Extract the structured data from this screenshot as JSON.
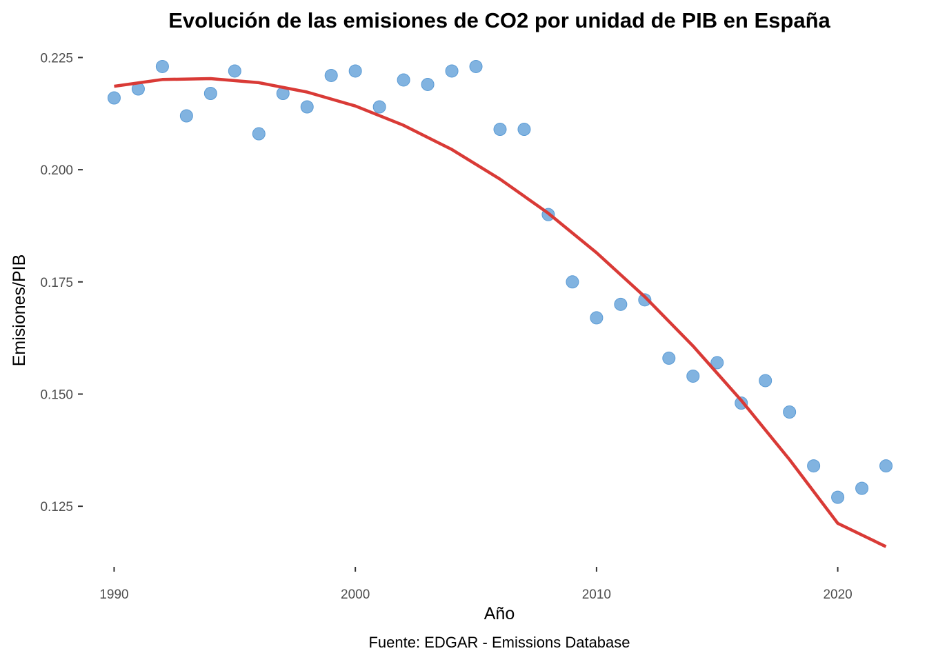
{
  "chart_data": {
    "type": "scatter",
    "title": "Evolución de las emisiones de CO2 por unidad de PIB en España",
    "xlabel": "Año",
    "ylabel": "Emisiones/PIB",
    "caption": "Fuente: EDGAR - Emissions Database",
    "xlim": [
      1988.7,
      2023.3
    ],
    "ylim": [
      0.1115,
      0.2286
    ],
    "x_ticks": [
      1990,
      2000,
      2010,
      2020
    ],
    "x_tick_labels": [
      "1990",
      "2000",
      "2010",
      "2020"
    ],
    "y_ticks": [
      0.125,
      0.15,
      0.175,
      0.2,
      0.225
    ],
    "y_tick_labels": [
      "0.125",
      "0.150",
      "0.175",
      "0.200",
      "0.225"
    ],
    "grid": false,
    "legend": "none",
    "series": [
      {
        "type": "scatter",
        "color": "#6fa8dc",
        "x": [
          1990,
          1991,
          1992,
          1993,
          1994,
          1995,
          1996,
          1997,
          1998,
          1999,
          2000,
          2001,
          2002,
          2003,
          2004,
          2005,
          2006,
          2007,
          2008,
          2009,
          2010,
          2011,
          2012,
          2013,
          2014,
          2015,
          2016,
          2017,
          2018,
          2019,
          2020,
          2021,
          2022
        ],
        "y": [
          0.216,
          0.218,
          0.223,
          0.212,
          0.217,
          0.222,
          0.208,
          0.217,
          0.214,
          0.221,
          0.222,
          0.214,
          0.22,
          0.219,
          0.222,
          0.223,
          0.209,
          0.209,
          0.19,
          0.175,
          0.167,
          0.17,
          0.171,
          0.158,
          0.154,
          0.157,
          0.148,
          0.153,
          0.146,
          0.134,
          0.127,
          0.129,
          0.134
        ]
      },
      {
        "type": "line",
        "color": "#d93a36",
        "x": [
          1990,
          1992,
          1994,
          1996,
          1998,
          2000,
          2002,
          2004,
          2006,
          2008,
          2010,
          2012,
          2014,
          2016,
          2018,
          2020,
          2022
        ],
        "y": [
          0.2186,
          0.2201,
          0.2203,
          0.2194,
          0.2173,
          0.2142,
          0.2099,
          0.2045,
          0.1979,
          0.1903,
          0.1815,
          0.1717,
          0.1607,
          0.1486,
          0.1354,
          0.1212,
          0.116
        ]
      }
    ]
  }
}
